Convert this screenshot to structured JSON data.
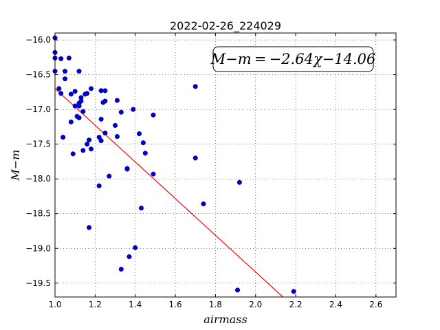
{
  "chart_data": {
    "type": "scatter",
    "title": "2022-02-26_224029",
    "xlabel": "airmass",
    "ylabel": "M−m",
    "xlim": [
      1.0,
      2.7
    ],
    "ylim": [
      -19.7,
      -15.9
    ],
    "x_ticks": [
      "1.0",
      "1.2",
      "1.4",
      "1.6",
      "1.8",
      "2.0",
      "2.2",
      "2.4",
      "2.6"
    ],
    "y_ticks": [
      "−16.0",
      "−16.5",
      "−17.0",
      "−17.5",
      "−18.0",
      "−18.5",
      "−19.0",
      "−19.5"
    ],
    "x_tick_values": [
      1.0,
      1.2,
      1.4,
      1.6,
      1.8,
      2.0,
      2.2,
      2.4,
      2.6
    ],
    "y_tick_values": [
      -16.0,
      -16.5,
      -17.0,
      -17.5,
      -18.0,
      -18.5,
      -19.0,
      -19.5
    ],
    "grid": true,
    "annotation": "M−m = −2.64χ−14.06",
    "fit": {
      "slope": -2.64,
      "intercept": -14.06,
      "color": "#ff0000"
    },
    "marker_color": "#0000cc",
    "points": [
      [
        1.0,
        -15.97
      ],
      [
        1.0,
        -16.18
      ],
      [
        1.0,
        -16.26
      ],
      [
        1.0,
        -16.45
      ],
      [
        1.03,
        -16.27
      ],
      [
        1.02,
        -16.7
      ],
      [
        1.03,
        -16.77
      ],
      [
        1.05,
        -16.45
      ],
      [
        1.05,
        -16.56
      ],
      [
        1.07,
        -16.26
      ],
      [
        1.08,
        -16.78
      ],
      [
        1.1,
        -16.74
      ],
      [
        1.04,
        -17.4
      ],
      [
        1.08,
        -17.18
      ],
      [
        1.09,
        -17.64
      ],
      [
        1.1,
        -16.95
      ],
      [
        1.11,
        -17.1
      ],
      [
        1.12,
        -17.12
      ],
      [
        1.12,
        -16.45
      ],
      [
        1.12,
        -16.91
      ],
      [
        1.12,
        -16.95
      ],
      [
        1.13,
        -16.88
      ],
      [
        1.13,
        -16.83
      ],
      [
        1.14,
        -17.03
      ],
      [
        1.15,
        -16.78
      ],
      [
        1.16,
        -16.77
      ],
      [
        1.14,
        -17.59
      ],
      [
        1.16,
        -17.5
      ],
      [
        1.17,
        -17.44
      ],
      [
        1.18,
        -16.7
      ],
      [
        1.18,
        -17.57
      ],
      [
        1.17,
        -18.7
      ],
      [
        1.22,
        -18.1
      ],
      [
        1.22,
        -17.4
      ],
      [
        1.23,
        -17.45
      ],
      [
        1.23,
        -17.14
      ],
      [
        1.23,
        -16.73
      ],
      [
        1.24,
        -16.9
      ],
      [
        1.25,
        -16.88
      ],
      [
        1.25,
        -16.73
      ],
      [
        1.25,
        -17.34
      ],
      [
        1.27,
        -17.96
      ],
      [
        1.3,
        -17.23
      ],
      [
        1.31,
        -17.39
      ],
      [
        1.31,
        -16.87
      ],
      [
        1.33,
        -17.04
      ],
      [
        1.33,
        -19.3
      ],
      [
        1.36,
        -17.86
      ],
      [
        1.36,
        -17.85
      ],
      [
        1.37,
        -19.12
      ],
      [
        1.39,
        -17.0
      ],
      [
        1.4,
        -18.99
      ],
      [
        1.42,
        -17.35
      ],
      [
        1.43,
        -18.42
      ],
      [
        1.44,
        -17.48
      ],
      [
        1.45,
        -17.63
      ],
      [
        1.49,
        -17.93
      ],
      [
        1.49,
        -17.08
      ],
      [
        1.7,
        -16.67
      ],
      [
        1.7,
        -17.7
      ],
      [
        1.74,
        -18.36
      ],
      [
        1.91,
        -19.6
      ],
      [
        1.92,
        -18.05
      ],
      [
        2.19,
        -19.62
      ]
    ]
  }
}
